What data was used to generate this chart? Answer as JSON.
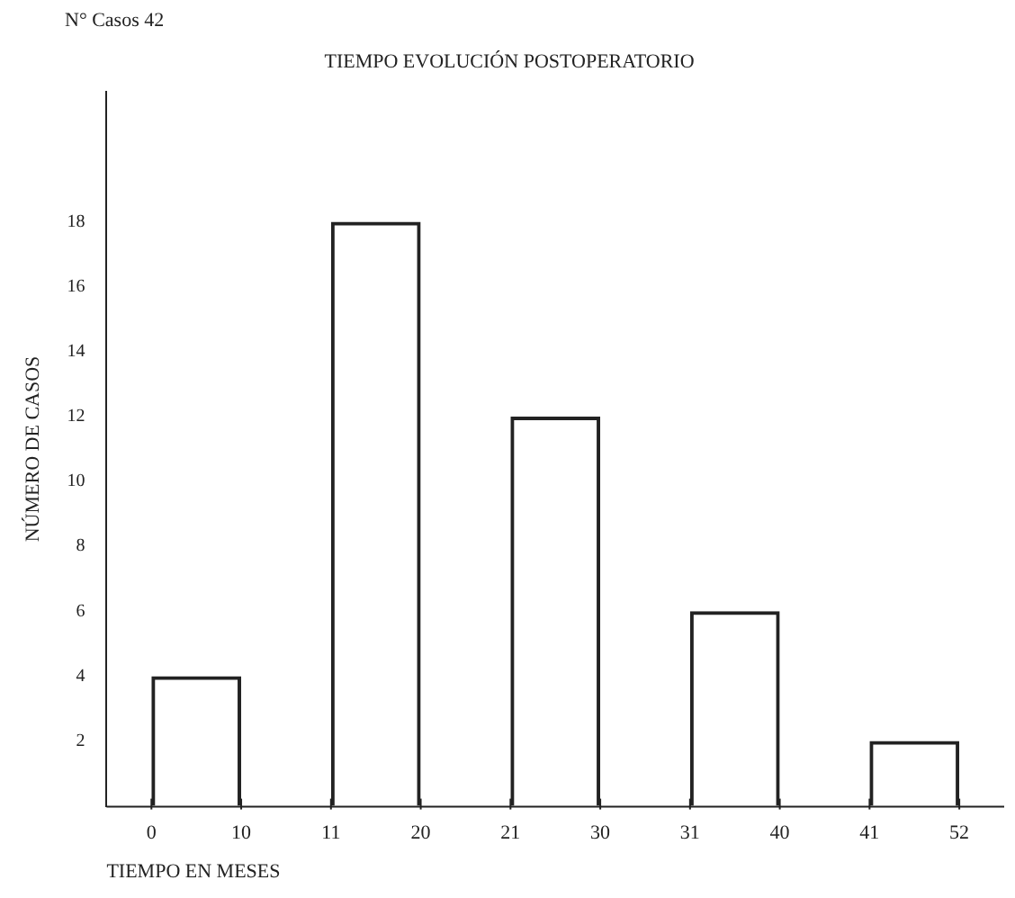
{
  "chart_data": {
    "type": "bar",
    "title": "TIEMPO EVOLUCIÓN POSTOPERATORIO",
    "xlabel": "TIEMPO EN MESES",
    "ylabel": "NÚMERO DE CASOS",
    "annotations": [
      "N° Casos 42"
    ],
    "categories": [
      "0 10",
      "11 20",
      "21 30",
      "31 40",
      "41 52"
    ],
    "values": [
      4,
      18,
      12,
      6,
      2
    ],
    "color": "#222222",
    "ylim": [
      0,
      22
    ],
    "yticks": [
      2,
      4,
      6,
      8,
      10,
      12,
      14,
      16,
      18
    ],
    "grid": false,
    "legend": false
  }
}
